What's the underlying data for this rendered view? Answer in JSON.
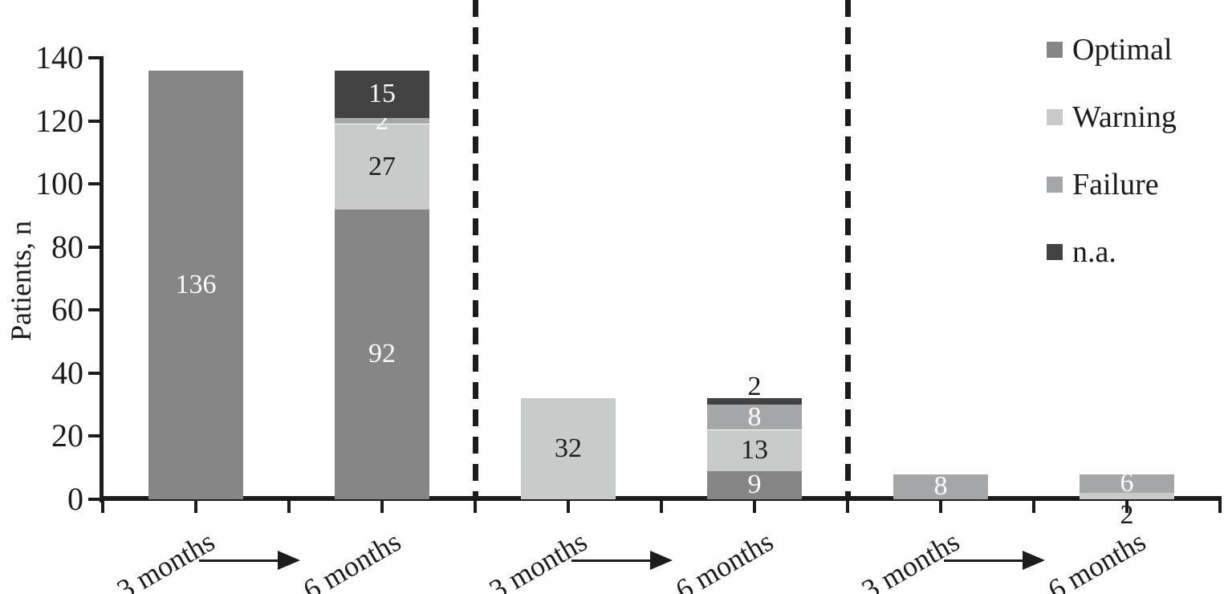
{
  "chart_data": {
    "type": "bar",
    "stacked": true,
    "title": "",
    "ylabel": "Patients, n",
    "xlabel": "",
    "ylim": [
      0,
      140
    ],
    "yticks": [
      0,
      20,
      40,
      60,
      80,
      100,
      120,
      140
    ],
    "grid": false,
    "legend_position": "top-right",
    "legend": [
      "Optimal",
      "Warning",
      "Failure",
      "n.a."
    ],
    "colors": {
      "Optimal": "#868686",
      "Warning": "#c9caca",
      "Failure": "#a5a6a7",
      "n.a.": "#424242",
      "label_light": "#fbfbfb",
      "label_dark": "#1c1c1c",
      "axis": "#1c1c1c"
    },
    "groups": [
      {
        "arrow": true,
        "bars": [
          {
            "x_label": "3 months",
            "segments": [
              {
                "series": "Optimal",
                "value": 136,
                "label": "136",
                "label_style": "light",
                "label_pos": "inside"
              }
            ]
          },
          {
            "x_label": "6 months",
            "segments": [
              {
                "series": "Optimal",
                "value": 92,
                "label": "92",
                "label_style": "light",
                "label_pos": "inside"
              },
              {
                "series": "Warning",
                "value": 27,
                "label": "27",
                "label_style": "dark",
                "label_pos": "inside"
              },
              {
                "series": "Failure",
                "value": 2,
                "label": "2",
                "label_style": "light",
                "label_pos": "inside"
              },
              {
                "series": "n.a.",
                "value": 15,
                "label": "15",
                "label_style": "light",
                "label_pos": "inside"
              }
            ]
          }
        ]
      },
      {
        "arrow": true,
        "bars": [
          {
            "x_label": "3 months",
            "segments": [
              {
                "series": "Warning",
                "value": 32,
                "label": "32",
                "label_style": "dark",
                "label_pos": "inside"
              }
            ]
          },
          {
            "x_label": "6 months",
            "segments": [
              {
                "series": "Optimal",
                "value": 9,
                "label": "9",
                "label_style": "light",
                "label_pos": "inside"
              },
              {
                "series": "Warning",
                "value": 13,
                "label": "13",
                "label_style": "dark",
                "label_pos": "inside"
              },
              {
                "series": "Failure",
                "value": 8,
                "label": "8",
                "label_style": "light",
                "label_pos": "inside"
              },
              {
                "series": "n.a.",
                "value": 2,
                "label": "2",
                "label_style": "dark",
                "label_pos": "above"
              }
            ]
          }
        ]
      },
      {
        "arrow": true,
        "bars": [
          {
            "x_label": "3 months",
            "segments": [
              {
                "series": "Failure",
                "value": 8,
                "label": "8",
                "label_style": "light",
                "label_pos": "inside"
              }
            ]
          },
          {
            "x_label": "6 months",
            "segments": [
              {
                "series": "Warning",
                "value": 2,
                "label": "2",
                "label_style": "dark",
                "label_pos": "below_axis"
              },
              {
                "series": "Failure",
                "value": 6,
                "label": "6",
                "label_style": "light",
                "label_pos": "inside"
              }
            ]
          }
        ]
      }
    ]
  }
}
